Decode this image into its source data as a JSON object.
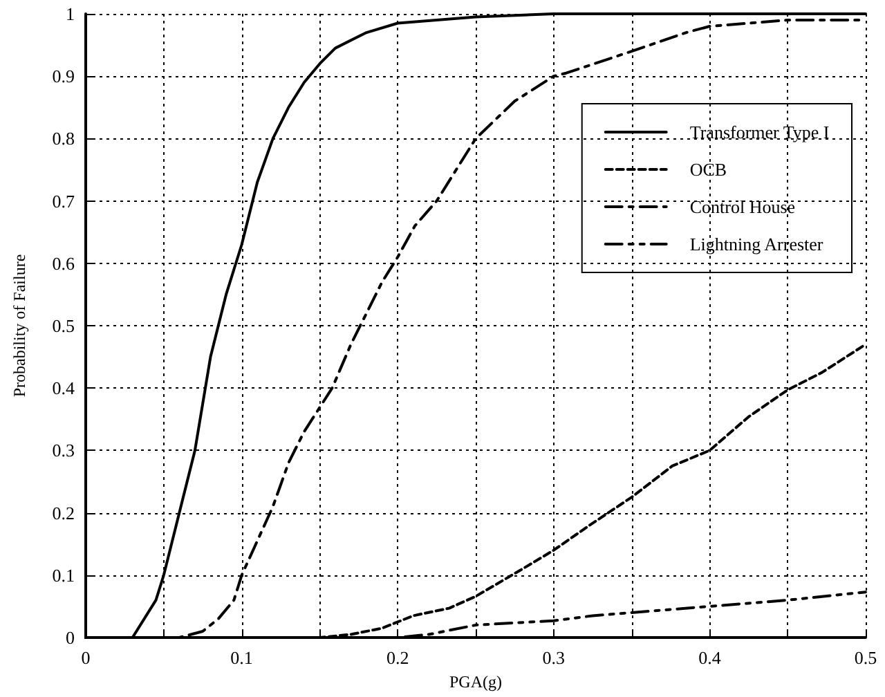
{
  "chart_data": {
    "type": "line",
    "xlabel": "PGA(g)",
    "ylabel": "Probability of Failure",
    "xlim": [
      0,
      0.5
    ],
    "xticks": [
      0,
      {
        "value": 0.05,
        "label": null
      },
      0.1,
      {
        "value": 0.15,
        "label": null
      },
      0.2,
      {
        "value": 0.25,
        "label": null
      },
      0.3,
      {
        "value": 0.35,
        "label": null
      },
      0.4,
      {
        "value": 0.45,
        "label": null
      },
      0.5
    ],
    "ylim": [
      0,
      1
    ],
    "yticks": [
      0,
      0.1,
      0.2,
      0.3,
      0.4,
      0.5,
      0.6,
      0.7,
      0.8,
      0.9,
      1
    ],
    "grid": true,
    "legend": "top right",
    "marker": "none",
    "series": [
      {
        "name": "Transformer Type I",
        "color": "#000000",
        "line_style": "solid",
        "x": [
          0,
          0.03,
          0.045,
          0.05,
          0.06,
          0.07,
          0.08,
          0.085,
          0.09,
          0.1,
          0.11,
          0.12,
          0.13,
          0.14,
          0.15,
          0.16,
          0.18,
          0.2,
          0.25,
          0.3,
          0.5
        ],
        "values": [
          0,
          0,
          0.06,
          0.1,
          0.2,
          0.3,
          0.45,
          0.5,
          0.55,
          0.63,
          0.73,
          0.8,
          0.85,
          0.89,
          0.92,
          0.945,
          0.97,
          0.985,
          0.995,
          1,
          1
        ]
      },
      {
        "name": "OCB",
        "color": "#000000",
        "line_style": "dashed",
        "x": [
          0,
          0.15,
          0.17,
          0.19,
          0.2,
          0.21,
          0.233,
          0.25,
          0.28,
          0.3,
          0.323,
          0.35,
          0.376,
          0.4,
          0.425,
          0.45,
          0.472,
          0.5
        ],
        "values": [
          0,
          0,
          0.005,
          0.015,
          0.025,
          0.035,
          0.047,
          0.066,
          0.11,
          0.14,
          0.18,
          0.225,
          0.275,
          0.3,
          0.354,
          0.397,
          0.425,
          0.47
        ]
      },
      {
        "name": "Control House",
        "color": "#000000",
        "line_style": "dashdot",
        "x": [
          0,
          0.06,
          0.075,
          0.085,
          0.095,
          0.1,
          0.12,
          0.13,
          0.14,
          0.158,
          0.17,
          0.18,
          0.19,
          0.2,
          0.211,
          0.225,
          0.25,
          0.275,
          0.3,
          0.308,
          0.326,
          0.35,
          0.385,
          0.4,
          0.425,
          0.45,
          0.5
        ],
        "values": [
          0,
          0,
          0.01,
          0.03,
          0.06,
          0.1,
          0.21,
          0.28,
          0.33,
          0.4,
          0.47,
          0.52,
          0.57,
          0.61,
          0.66,
          0.7,
          0.8,
          0.86,
          0.9,
          0.905,
          0.92,
          0.94,
          0.97,
          0.98,
          0.985,
          0.99,
          0.99
        ]
      },
      {
        "name": "Lightning Arrester",
        "color": "#000000",
        "line_style": "dashdotdot",
        "x": [
          0,
          0.2,
          0.22,
          0.25,
          0.3,
          0.325,
          0.35,
          0.4,
          0.45,
          0.5
        ],
        "values": [
          0,
          0,
          0.005,
          0.02,
          0.027,
          0.035,
          0.04,
          0.05,
          0.06,
          0.073
        ]
      }
    ]
  }
}
